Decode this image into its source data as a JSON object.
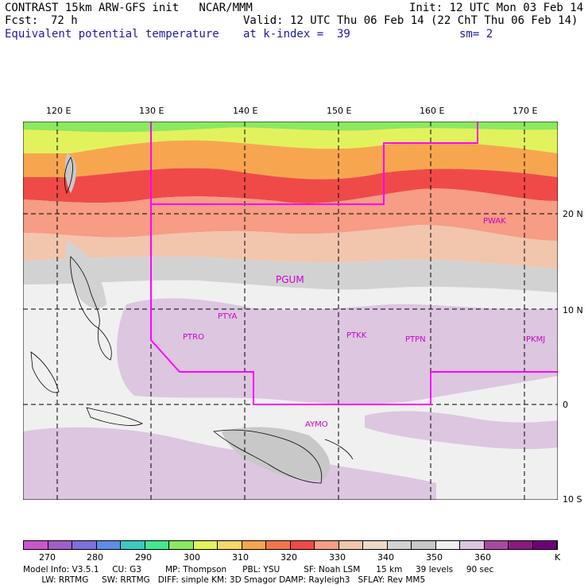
{
  "header": {
    "line1_left": "CONTRAST 15km ARW-GFS init   NCAR/MMM",
    "line1_right": "Init: 12 UTC Mon 03 Feb 14",
    "fcst_label": "Fcst:",
    "fcst_value": "72 h",
    "valid": "Valid: 12 UTC Thu 06 Feb 14 (22 ChT Thu 06 Feb 14)",
    "field": "Equivalent potential temperature",
    "level": "at k-index =  39",
    "smoothing": "sm= 2"
  },
  "map": {
    "lon_labels": [
      "120 E",
      "130 E",
      "140 E",
      "150 E",
      "160 E",
      "170 E"
    ],
    "lat_labels": [
      "20 N",
      "10 N",
      "0",
      "10 S"
    ],
    "stations": [
      {
        "id": "PWAK"
      },
      {
        "id": "PGUM"
      },
      {
        "id": "PTYA"
      },
      {
        "id": "PTRO"
      },
      {
        "id": "PTKK"
      },
      {
        "id": "PTPN"
      },
      {
        "id": "PKMJ"
      },
      {
        "id": "AYMO"
      }
    ]
  },
  "colorbar": {
    "unit": "K",
    "ticks": [
      "270",
      "280",
      "290",
      "300",
      "310",
      "320",
      "330",
      "340",
      "350",
      "360"
    ],
    "colors": [
      "#cc55cc",
      "#a25ec8",
      "#7d6fdc",
      "#5b8ee6",
      "#3dc9c0",
      "#43e88d",
      "#8ce860",
      "#e2f25c",
      "#f5d867",
      "#f7a64f",
      "#f5754b",
      "#ef4a48",
      "#f79c85",
      "#f2c5ad",
      "#eed8c8",
      "#d2d2d2",
      "#c8c8c8",
      "#f0f0f0",
      "#dcc6e0",
      "#aa48a0",
      "#8a1a80",
      "#6e007a"
    ]
  },
  "footer": {
    "line1": "Model Info: V3.5.1     CU: G3         MP: Thompson      PBL: YSU         SF: Noah LSM      15 km     39 levels     90 sec",
    "line2": "       LW: RRTMG     SW: RRTMG   DIFF: simple KM: 3D Smagor DAMP: Rayleigh3   SFLAY: Rev MM5"
  }
}
